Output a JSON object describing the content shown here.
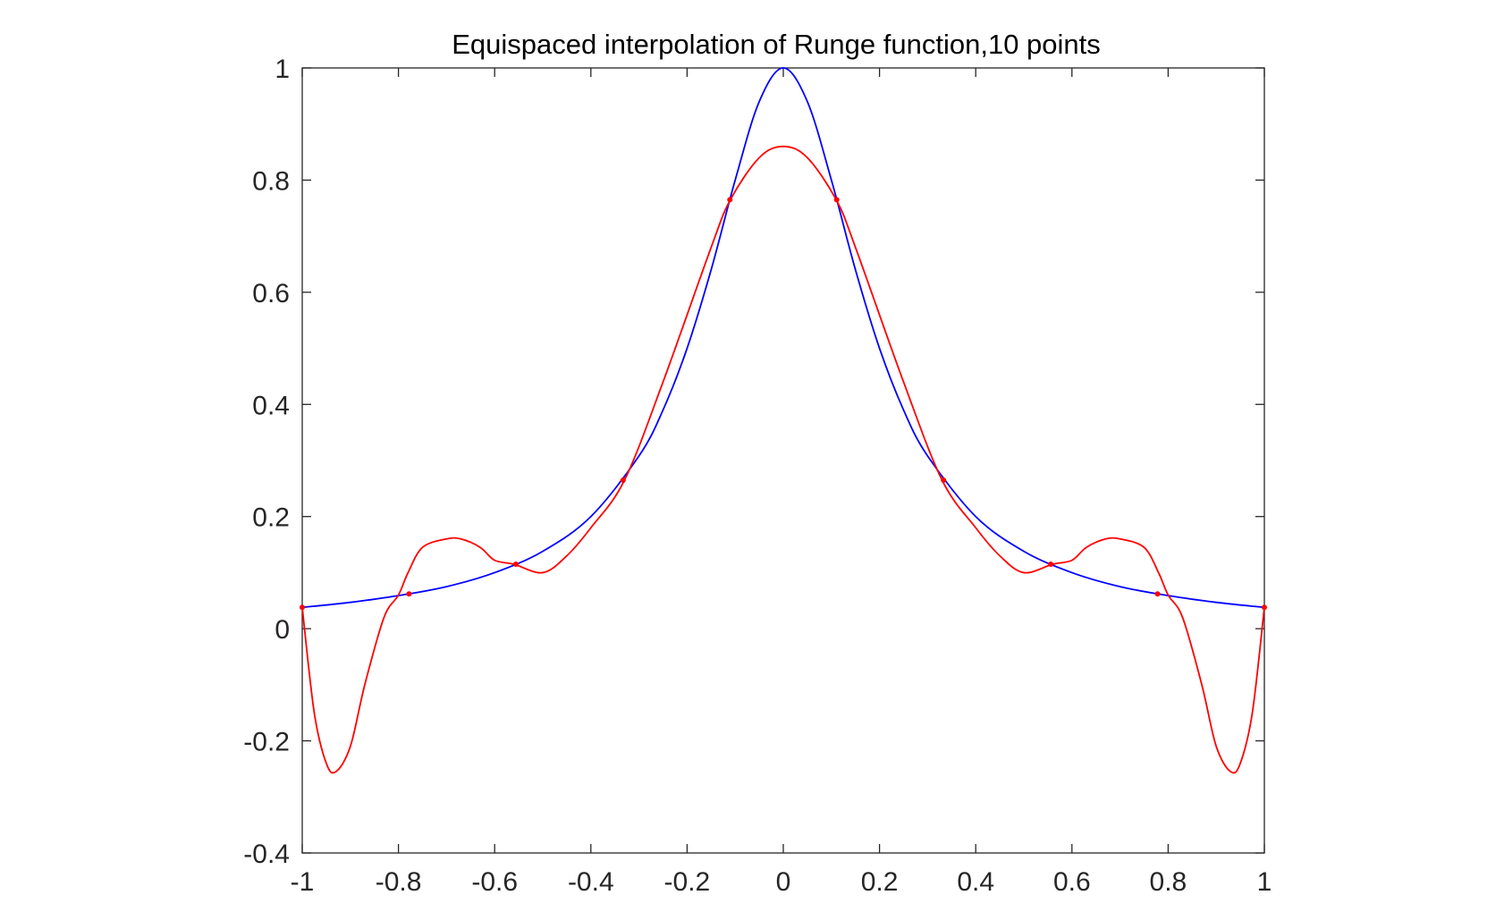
{
  "chart_data": {
    "type": "line",
    "title": "Equispaced interpolation of Runge function,10 points",
    "xlabel": "",
    "ylabel": "",
    "xlim": [
      -1,
      1
    ],
    "ylim": [
      -0.4,
      1
    ],
    "x_ticks": [
      "-1",
      "-0.8",
      "-0.6",
      "-0.4",
      "-0.2",
      "0",
      "0.2",
      "0.4",
      "0.6",
      "0.8",
      "1"
    ],
    "x_tick_values": [
      -1,
      -0.8,
      -0.6,
      -0.4,
      -0.2,
      0,
      0.2,
      0.4,
      0.6,
      0.8,
      1
    ],
    "y_ticks": [
      "-0.4",
      "-0.2",
      "0",
      "0.2",
      "0.4",
      "0.6",
      "0.8",
      "1"
    ],
    "y_tick_values": [
      -0.4,
      -0.2,
      0,
      0.2,
      0.4,
      0.6,
      0.8,
      1
    ],
    "grid": false,
    "legend": "none",
    "series": [
      {
        "color": "#0000ff",
        "x": [
          -1,
          -0.9,
          -0.8,
          -0.7,
          -0.6,
          -0.5,
          -0.4,
          -0.3,
          -0.25,
          -0.2,
          -0.15,
          -0.1,
          -0.05,
          0,
          0.05,
          0.1,
          0.15,
          0.2,
          0.25,
          0.3,
          0.4,
          0.5,
          0.6,
          0.7,
          0.8,
          0.9,
          1
        ],
        "y": [
          0.038,
          0.047,
          0.059,
          0.075,
          0.1,
          0.138,
          0.2,
          0.308,
          0.39,
          0.5,
          0.64,
          0.8,
          0.94,
          1,
          0.94,
          0.8,
          0.64,
          0.5,
          0.39,
          0.308,
          0.2,
          0.138,
          0.1,
          0.075,
          0.059,
          0.047,
          0.038
        ]
      },
      {
        "color": "#ff0000",
        "x": [
          -1,
          -0.975,
          -0.95,
          -0.93,
          -0.9,
          -0.87,
          -0.83,
          -0.8,
          -0.78,
          -0.75,
          -0.7,
          -0.67,
          -0.63,
          -0.6,
          -0.56,
          -0.5,
          -0.45,
          -0.4,
          -0.33,
          -0.25,
          -0.15,
          -0.11,
          -0.05,
          0,
          0.05,
          0.11,
          0.15,
          0.25,
          0.33,
          0.4,
          0.45,
          0.5,
          0.56,
          0.6,
          0.63,
          0.67,
          0.7,
          0.75,
          0.78,
          0.8,
          0.83,
          0.87,
          0.9,
          0.93,
          0.95,
          0.975,
          1
        ],
        "y": [
          0.038,
          -0.15,
          -0.24,
          -0.255,
          -0.21,
          -0.1,
          0.02,
          0.06,
          0.1,
          0.145,
          0.16,
          0.16,
          0.145,
          0.122,
          0.115,
          0.1,
          0.13,
          0.18,
          0.265,
          0.44,
          0.68,
          0.765,
          0.84,
          0.86,
          0.84,
          0.765,
          0.68,
          0.44,
          0.265,
          0.18,
          0.13,
          0.1,
          0.115,
          0.122,
          0.145,
          0.16,
          0.16,
          0.145,
          0.1,
          0.06,
          0.02,
          -0.1,
          -0.21,
          -0.255,
          -0.24,
          -0.15,
          0.038
        ]
      }
    ],
    "markers": {
      "color": "#ff0000",
      "x": [
        -1,
        -0.778,
        -0.556,
        -0.333,
        -0.111,
        0.111,
        0.333,
        0.556,
        0.778,
        1
      ],
      "y": [
        0.038,
        0.062,
        0.115,
        0.265,
        0.765,
        0.765,
        0.265,
        0.115,
        0.062,
        0.038
      ]
    }
  }
}
